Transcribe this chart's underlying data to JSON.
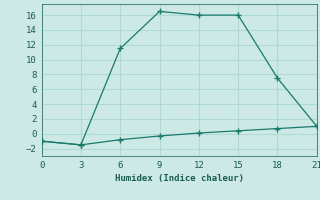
{
  "line1_x": [
    0,
    3,
    6,
    9,
    12,
    15,
    18,
    21
  ],
  "line1_y": [
    -1,
    -1.5,
    11.5,
    16.5,
    16,
    16,
    7.5,
    1
  ],
  "line2_x": [
    0,
    3,
    6,
    9,
    12,
    15,
    18,
    21
  ],
  "line2_y": [
    -1,
    -1.5,
    -0.8,
    -0.3,
    0.1,
    0.4,
    0.7,
    1.0
  ],
  "line_color": "#1a7a6e",
  "bg_color": "#cce9e5",
  "grid_color": "#b0d8d4",
  "xlabel": "Humidex (Indice chaleur)",
  "xlim": [
    0,
    21
  ],
  "ylim": [
    -3,
    17.5
  ],
  "xticks": [
    0,
    3,
    6,
    9,
    12,
    15,
    18,
    21
  ],
  "yticks": [
    -2,
    0,
    2,
    4,
    6,
    8,
    10,
    12,
    14,
    16
  ]
}
